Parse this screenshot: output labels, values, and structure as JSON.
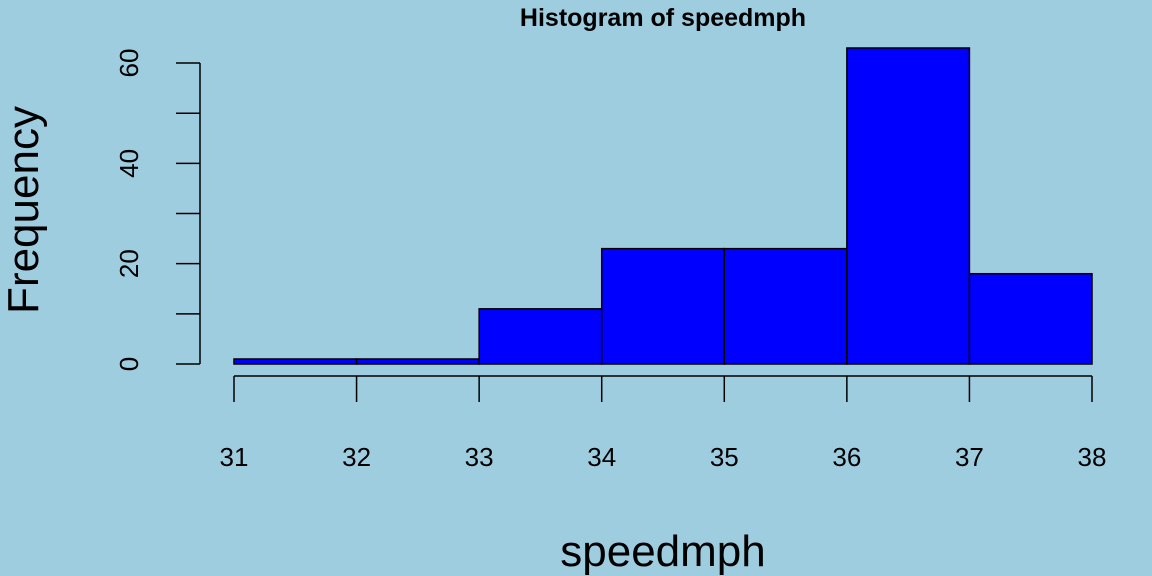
{
  "colors": {
    "background": "#9ecde0",
    "bar_fill": "#0000ff",
    "bar_stroke": "#000000"
  },
  "chart_data": {
    "type": "histogram",
    "title": "Histogram of speedmph",
    "xlabel": "speedmph",
    "ylabel": "Frequency",
    "bins": [
      {
        "start": 31,
        "end": 32,
        "count": 1
      },
      {
        "start": 32,
        "end": 33,
        "count": 1
      },
      {
        "start": 33,
        "end": 34,
        "count": 11
      },
      {
        "start": 34,
        "end": 35,
        "count": 23
      },
      {
        "start": 35,
        "end": 36,
        "count": 23
      },
      {
        "start": 36,
        "end": 37,
        "count": 63
      },
      {
        "start": 37,
        "end": 38,
        "count": 18
      }
    ],
    "xlim": [
      31,
      38
    ],
    "ylim": [
      0,
      63
    ],
    "x_ticks": [
      "31",
      "32",
      "33",
      "34",
      "35",
      "36",
      "37",
      "38"
    ],
    "y_ticks": [
      "0",
      "20",
      "40",
      "60"
    ],
    "y_minor_ticks": [
      10,
      30,
      50
    ],
    "grid": false,
    "legend": "none"
  }
}
